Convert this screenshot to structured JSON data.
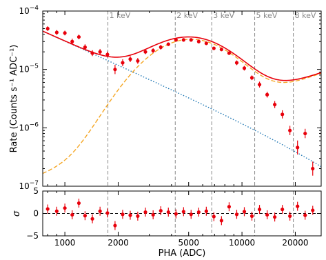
{
  "chart_data": [
    {
      "type": "scatter",
      "panel": "spectrum",
      "xlabel": "PHA (ADC)",
      "ylabel": "Rate (Counts s⁻¹ ADC⁻¹)",
      "xscale": "log",
      "yscale": "log",
      "xlim": [
        750,
        28000
      ],
      "ylim": [
        1e-07,
        0.0001
      ],
      "x_tick_labels": [
        "1000",
        "2000",
        "5000",
        "10000",
        "20000"
      ],
      "x_tick_values": [
        1000,
        2000,
        5000,
        10000,
        20000
      ],
      "y_tick_labels": [
        {
          "base": "10",
          "exp": "−4",
          "value": 0.0001
        },
        {
          "base": "10",
          "exp": "−5",
          "value": 1e-05
        },
        {
          "base": "10",
          "exp": "−6",
          "value": 1e-06
        },
        {
          "base": "10",
          "exp": "−7",
          "value": 1e-07
        }
      ],
      "energy_markers": [
        {
          "label": "1 keV",
          "x": 1750
        },
        {
          "label": "2 keV",
          "x": 4200
        },
        {
          "label": "3 keV",
          "x": 6750
        },
        {
          "label": "5 keV",
          "x": 11800
        },
        {
          "label": "8 keV",
          "x": 19500
        }
      ],
      "points": {
        "x": [
          800,
          900,
          1000,
          1100,
          1200,
          1300,
          1430,
          1580,
          1740,
          1920,
          2120,
          2340,
          2580,
          2850,
          3150,
          3480,
          3840,
          4240,
          4680,
          5160,
          5700,
          6290,
          6940,
          7660,
          8460,
          9340,
          10310,
          11380,
          12560,
          13870,
          15310,
          16900,
          18650,
          20590,
          22730,
          25090
        ],
        "y": [
          5e-05,
          4.3e-05,
          4.2e-05,
          3e-05,
          3.6e-05,
          2.4e-05,
          1.9e-05,
          2e-05,
          1.8e-05,
          1e-05,
          1.3e-05,
          1.5e-05,
          1.4e-05,
          2e-05,
          2.1e-05,
          2.4e-05,
          2.7e-05,
          3.2e-05,
          3.2e-05,
          3.2e-05,
          3e-05,
          2.8e-05,
          2.3e-05,
          2.2e-05,
          1.9e-05,
          1.3e-05,
          1.05e-05,
          7.2e-06,
          5.5e-06,
          3.7e-06,
          2.5e-06,
          1.7e-06,
          9e-07,
          4.6e-07,
          8e-07,
          2e-07
        ],
        "yerr_dex": [
          0.04,
          0.04,
          0.04,
          0.05,
          0.04,
          0.05,
          0.05,
          0.05,
          0.05,
          0.08,
          0.06,
          0.05,
          0.05,
          0.04,
          0.04,
          0.04,
          0.03,
          0.03,
          0.03,
          0.03,
          0.03,
          0.03,
          0.03,
          0.03,
          0.03,
          0.04,
          0.04,
          0.04,
          0.05,
          0.05,
          0.06,
          0.07,
          0.08,
          0.12,
          0.08,
          0.12
        ]
      },
      "lines": [
        {
          "style": "solid",
          "color": "#e8000b"
        },
        {
          "style": "dashed",
          "color": "#f5a623"
        },
        {
          "style": "dotted",
          "color": "#1f77b4"
        }
      ],
      "colors": {
        "data": "#e8000b",
        "total": "#e8000b",
        "component_a": "#f5a623",
        "component_b": "#1f77b4",
        "marker_line": "#888888"
      }
    },
    {
      "type": "scatter",
      "panel": "residuals",
      "ylabel": "σ",
      "xscale": "log",
      "xlim": [
        750,
        28000
      ],
      "ylim": [
        -5,
        5
      ],
      "y_tick_labels": [
        "5",
        "0",
        "−5"
      ],
      "y_tick_values": [
        5,
        0,
        -5
      ],
      "zero_line": "dashed",
      "points": {
        "x": [
          800,
          900,
          1000,
          1100,
          1200,
          1300,
          1430,
          1580,
          1740,
          1920,
          2120,
          2340,
          2580,
          2850,
          3150,
          3480,
          3840,
          4240,
          4680,
          5160,
          5700,
          6290,
          6940,
          7660,
          8460,
          9340,
          10310,
          11380,
          12560,
          13870,
          15310,
          16900,
          18650,
          20590,
          22730,
          25090
        ],
        "y": [
          1.0,
          0.5,
          1.2,
          -0.3,
          2.3,
          -0.5,
          -1.2,
          0.5,
          0.1,
          -2.7,
          -0.2,
          -0.4,
          -0.6,
          0.3,
          -0.3,
          0.6,
          0.3,
          -0.1,
          0.4,
          -0.2,
          0.3,
          0.5,
          -0.7,
          -1.6,
          1.5,
          -0.2,
          0.4,
          -0.6,
          0.9,
          -0.3,
          -0.8,
          0.9,
          -0.6,
          1.6,
          -0.4,
          0.7
        ],
        "yerr": [
          1,
          1,
          1,
          1,
          1,
          1,
          1,
          1,
          1,
          1,
          1,
          1,
          1,
          1,
          1,
          1,
          1,
          1,
          1,
          1,
          1,
          1,
          1,
          1,
          1,
          1,
          1,
          1,
          1,
          1,
          1,
          1,
          1,
          1,
          1,
          1
        ]
      }
    }
  ]
}
